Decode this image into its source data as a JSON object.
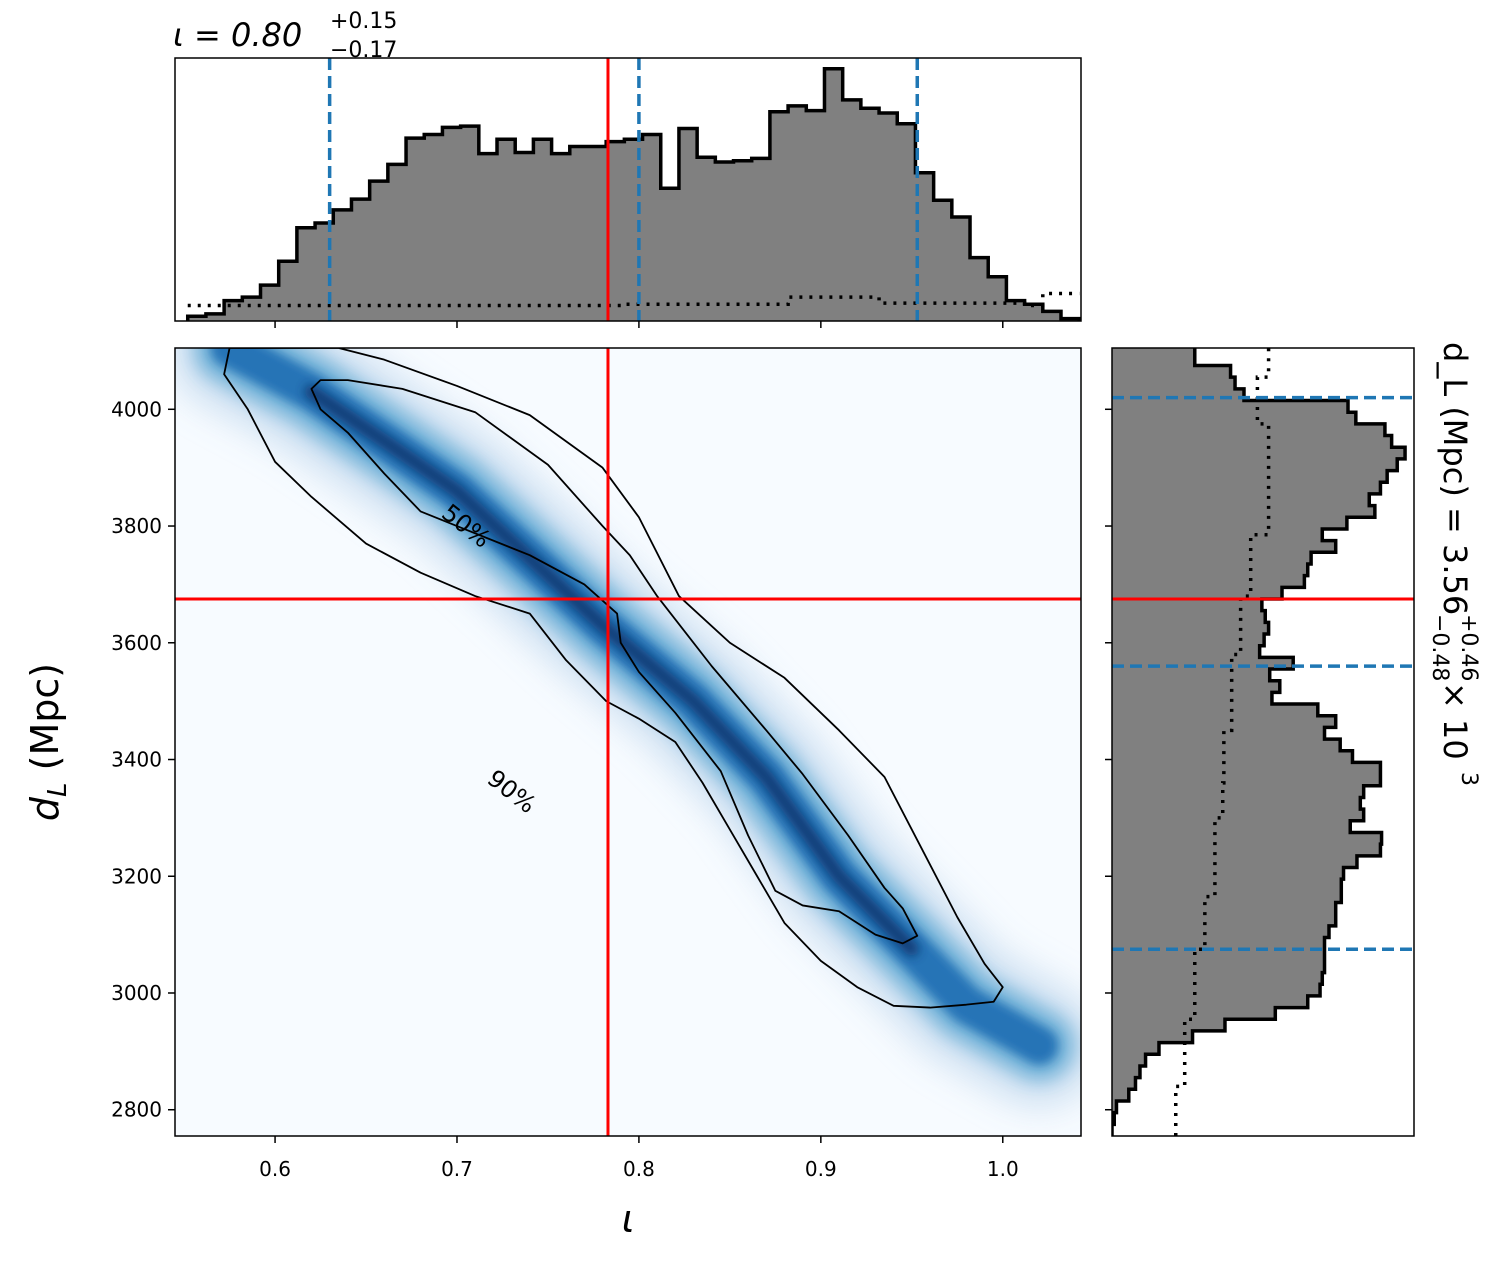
{
  "chart_data": [
    {
      "type": "heatmap",
      "panel": "joint",
      "xlabel": "ι",
      "ylabel": "d_L (Mpc)",
      "xlim": [
        0.545,
        1.043
      ],
      "ylim": [
        2755,
        4105
      ],
      "x_ticks": [
        "0.6",
        "0.7",
        "0.8",
        "0.9",
        "1.0"
      ],
      "y_ticks": [
        "2800",
        "3000",
        "3200",
        "3400",
        "3600",
        "3800",
        "4000"
      ],
      "x_tick_values": [
        0.6,
        0.7,
        0.8,
        0.9,
        1.0
      ],
      "y_tick_values": [
        2800,
        3000,
        3200,
        3400,
        3600,
        3800,
        4000
      ],
      "injection": {
        "x": 0.783,
        "y": 3675
      },
      "colormap": "Blues",
      "density_ridge": [
        {
          "x": 0.575,
          "y": 4105
        },
        {
          "x": 0.62,
          "y": 4030
        },
        {
          "x": 0.665,
          "y": 3935
        },
        {
          "x": 0.7,
          "y": 3860
        },
        {
          "x": 0.74,
          "y": 3745
        },
        {
          "x": 0.78,
          "y": 3630
        },
        {
          "x": 0.83,
          "y": 3500
        },
        {
          "x": 0.87,
          "y": 3370
        },
        {
          "x": 0.91,
          "y": 3200
        },
        {
          "x": 0.95,
          "y": 3075
        },
        {
          "x": 0.98,
          "y": 2980
        },
        {
          "x": 1.02,
          "y": 2910
        }
      ],
      "contours": [
        {
          "level": "50%",
          "path": [
            [
              0.62,
              4035
            ],
            [
              0.625,
              4050
            ],
            [
              0.64,
              4050
            ],
            [
              0.67,
              4035
            ],
            [
              0.71,
              3995
            ],
            [
              0.75,
              3905
            ],
            [
              0.78,
              3800
            ],
            [
              0.795,
              3750
            ],
            [
              0.81,
              3680
            ],
            [
              0.84,
              3560
            ],
            [
              0.87,
              3450
            ],
            [
              0.89,
              3375
            ],
            [
              0.915,
              3270
            ],
            [
              0.935,
              3180
            ],
            [
              0.945,
              3145
            ],
            [
              0.953,
              3098
            ],
            [
              0.945,
              3085
            ],
            [
              0.93,
              3100
            ],
            [
              0.91,
              3140
            ],
            [
              0.89,
              3150
            ],
            [
              0.875,
              3175
            ],
            [
              0.86,
              3270
            ],
            [
              0.845,
              3380
            ],
            [
              0.82,
              3480
            ],
            [
              0.8,
              3550
            ],
            [
              0.79,
              3600
            ],
            [
              0.788,
              3650
            ],
            [
              0.77,
              3700
            ],
            [
              0.74,
              3750
            ],
            [
              0.7,
              3800
            ],
            [
              0.68,
              3825
            ],
            [
              0.66,
              3890
            ],
            [
              0.64,
              3960
            ],
            [
              0.625,
              4000
            ],
            [
              0.62,
              4035
            ]
          ],
          "label_at": {
            "x": 0.705,
            "y": 3800
          }
        },
        {
          "level": "90%",
          "path": [
            [
              0.58,
              4105
            ],
            [
              0.635,
              4105
            ],
            [
              0.66,
              4085
            ],
            [
              0.7,
              4040
            ],
            [
              0.74,
              3990
            ],
            [
              0.78,
              3900
            ],
            [
              0.8,
              3815
            ],
            [
              0.822,
              3680
            ],
            [
              0.85,
              3600
            ],
            [
              0.88,
              3540
            ],
            [
              0.91,
              3450
            ],
            [
              0.935,
              3370
            ],
            [
              0.955,
              3250
            ],
            [
              0.975,
              3130
            ],
            [
              0.99,
              3050
            ],
            [
              1.0,
              3010
            ],
            [
              0.995,
              2985
            ],
            [
              0.98,
              2980
            ],
            [
              0.96,
              2975
            ],
            [
              0.94,
              2978
            ],
            [
              0.92,
              3010
            ],
            [
              0.9,
              3055
            ],
            [
              0.88,
              3120
            ],
            [
              0.865,
              3200
            ],
            [
              0.85,
              3280
            ],
            [
              0.835,
              3360
            ],
            [
              0.82,
              3430
            ],
            [
              0.8,
              3470
            ],
            [
              0.782,
              3500
            ],
            [
              0.76,
              3570
            ],
            [
              0.74,
              3650
            ],
            [
              0.71,
              3680
            ],
            [
              0.68,
              3720
            ],
            [
              0.65,
              3770
            ],
            [
              0.62,
              3850
            ],
            [
              0.6,
              3910
            ],
            [
              0.585,
              4000
            ],
            [
              0.572,
              4060
            ],
            [
              0.575,
              4105
            ],
            [
              0.58,
              4105
            ]
          ],
          "label_at": {
            "x": 0.73,
            "y": 3345
          }
        }
      ]
    },
    {
      "type": "bar",
      "panel": "marginal-top",
      "title": "ι = 0.80",
      "title_sup": "+0.15",
      "title_sub": "−0.17",
      "xlim": [
        0.545,
        1.043
      ],
      "bin_edges": [
        0.552,
        0.562,
        0.572,
        0.582,
        0.592,
        0.602,
        0.612,
        0.622,
        0.632,
        0.642,
        0.652,
        0.662,
        0.672,
        0.682,
        0.692,
        0.702,
        0.712,
        0.722,
        0.732,
        0.742,
        0.752,
        0.762,
        0.772,
        0.782,
        0.792,
        0.802,
        0.812,
        0.822,
        0.832,
        0.842,
        0.852,
        0.862,
        0.872,
        0.882,
        0.892,
        0.902,
        0.912,
        0.922,
        0.932,
        0.942,
        0.952,
        0.962,
        0.972,
        0.982,
        0.992,
        1.002,
        1.012,
        1.022,
        1.032,
        1.042
      ],
      "values": [
        0.4,
        0.6,
        1.7,
        2.0,
        3.0,
        5.0,
        7.8,
        8.2,
        9.3,
        10.2,
        11.7,
        13.1,
        15.3,
        15.6,
        16.2,
        16.3,
        14.0,
        15.2,
        14.1,
        15.2,
        14.0,
        14.6,
        14.6,
        15.0,
        15.2,
        15.6,
        11.1,
        16.1,
        13.7,
        13.3,
        13.4,
        13.6,
        17.5,
        18.0,
        17.6,
        21.1,
        18.5,
        17.8,
        17.4,
        16.5,
        12.4,
        10.1,
        8.7,
        5.3,
        3.7,
        1.7,
        1.4,
        0.8,
        0.2
      ],
      "prior": [
        {
          "x": 0.552,
          "y": 1.3
        },
        {
          "x": 0.632,
          "y": 1.3
        },
        {
          "x": 0.792,
          "y": 1.4
        },
        {
          "x": 0.882,
          "y": 2.0
        },
        {
          "x": 0.922,
          "y": 2.0
        },
        {
          "x": 0.932,
          "y": 1.5
        },
        {
          "x": 0.982,
          "y": 1.5
        },
        {
          "x": 1.012,
          "y": 1.3
        },
        {
          "x": 1.022,
          "y": 2.3
        },
        {
          "x": 1.042,
          "y": 2.3
        }
      ],
      "ylim": [
        0,
        22
      ],
      "quantiles": [
        0.63,
        0.8,
        0.953
      ],
      "injection": 0.783
    },
    {
      "type": "bar",
      "panel": "marginal-right",
      "title": "d_L (Mpc) = 3.56",
      "title_sup": "+0.46",
      "title_sub": "−0.48",
      "title_suffix": "× 10",
      "title_exp": "3",
      "ylim": [
        2755,
        4105
      ],
      "bin_edges": [
        2755,
        2775,
        2795,
        2815,
        2835,
        2855,
        2875,
        2895,
        2915,
        2935,
        2955,
        2975,
        2995,
        3015,
        3035,
        3055,
        3075,
        3095,
        3115,
        3135,
        3155,
        3175,
        3195,
        3215,
        3235,
        3255,
        3275,
        3295,
        3315,
        3335,
        3355,
        3375,
        3395,
        3415,
        3435,
        3455,
        3475,
        3495,
        3515,
        3535,
        3555,
        3575,
        3595,
        3615,
        3635,
        3655,
        3675,
        3695,
        3715,
        3735,
        3755,
        3775,
        3795,
        3815,
        3835,
        3855,
        3875,
        3895,
        3915,
        3935,
        3955,
        3975,
        3995,
        4015,
        4035,
        4055,
        4075,
        4105
      ],
      "values": [
        0.0,
        0.2,
        0.4,
        1.5,
        2.1,
        2.5,
        3.0,
        4.2,
        7.2,
        10.1,
        14.6,
        17.5,
        18.6,
        18.8,
        19.0,
        19.0,
        19.0,
        19.4,
        20.0,
        20.0,
        20.5,
        20.5,
        20.7,
        21.9,
        24.0,
        24.1,
        21.3,
        22.5,
        22.2,
        22.5,
        24.0,
        24.0,
        21.5,
        20.4,
        19.0,
        20.0,
        18.4,
        14.3,
        15.0,
        14.1,
        16.2,
        13.2,
        13.6,
        14.0,
        13.7,
        13.4,
        15.2,
        17.2,
        17.5,
        17.8,
        20.0,
        18.8,
        21.0,
        23.5,
        23.0,
        24.0,
        24.6,
        25.5,
        26.2,
        25.0,
        24.4,
        21.8,
        21.1,
        11.8,
        11.0,
        10.6,
        7.4
      ],
      "prior": [
        {
          "v": 5.7,
          "y": 2755
        },
        {
          "v": 5.7,
          "y": 2820
        },
        {
          "v": 6.5,
          "y": 2840
        },
        {
          "v": 7.4,
          "y": 2955
        },
        {
          "v": 8.3,
          "y": 3075
        },
        {
          "v": 9.2,
          "y": 3165
        },
        {
          "v": 9.9,
          "y": 3300
        },
        {
          "v": 10.0,
          "y": 3360
        },
        {
          "v": 10.7,
          "y": 3450
        },
        {
          "v": 11.5,
          "y": 3580
        },
        {
          "v": 12.4,
          "y": 3680
        },
        {
          "v": 14.0,
          "y": 3785
        },
        {
          "v": 13.0,
          "y": 3975
        },
        {
          "v": 14.0,
          "y": 4055
        },
        {
          "v": 14.0,
          "y": 4105
        }
      ],
      "xlim": [
        0,
        27
      ],
      "quantiles": [
        3075,
        3560,
        4020
      ],
      "injection": 3675
    }
  ],
  "colors": {
    "hist_fill": "#808080",
    "hist_edge": "#000000",
    "quantile": "#1f77b4",
    "injection": "#ff0000",
    "density_high": "#08306b",
    "density_mid": "#2171b5",
    "density_low": "#c6dbef",
    "density_bg": "#f7fbff"
  }
}
